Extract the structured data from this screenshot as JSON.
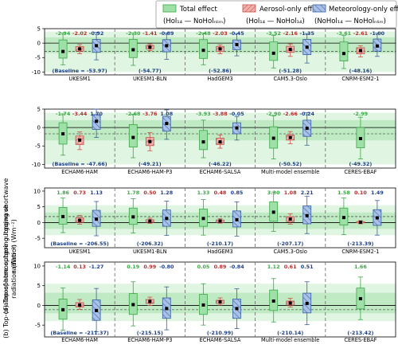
{
  "colors": {
    "total": "#3aa845",
    "total_fill": "#9fe0a8",
    "aerosol": "#c8504a",
    "aerosol_fill": "#f0b3ae",
    "meteo": "#3860a0",
    "meteo_fill": "#a9c1e6",
    "band_dark": "#bfeac4",
    "band_light": "#e0f5e2"
  },
  "legend": [
    {
      "line1": "Total effect",
      "line2": "(Hol₁₄ — NoHolₙₗᵢₘ)",
      "key": "total"
    },
    {
      "line1": "Aerosol-only effect",
      "line2": "(Hol₁₄ — NoHol₁₄)",
      "key": "aerosol"
    },
    {
      "line1": "Meteorology-only effect",
      "line2": "(NoHol₁₄ — NoHolₙₗᵢₘ)",
      "key": "meteo"
    }
  ],
  "y_labels": {
    "a": "(a) Top-of-atmosphere outgoing shortwave",
    "a2": "radiation (Wm⁻²)",
    "b": "(b) Top-of-atmosphere outgoing longwave",
    "b2": "radiation (Wm⁻²)"
  },
  "chart_data": [
    {
      "type": "box",
      "panel": "SW-top",
      "ylim": [
        -11,
        5
      ],
      "yticks": [
        5,
        0,
        -5,
        -10
      ],
      "band_dark": [
        -3.5,
        2.0
      ],
      "band_light": [
        -10,
        4
      ],
      "models": [
        {
          "name": "UKESM1",
          "baseline": "(Baseline = -53.97)",
          "values": [
            "-2.94",
            "-2.02",
            "-0.92"
          ],
          "boxes": [
            {
              "med": -2.9,
              "q1": -5.2,
              "q3": 1.1,
              "lo": -7.5,
              "hi": 3.5
            },
            {
              "med": -2.0,
              "q1": -2.8,
              "q3": -1.2,
              "lo": -3.7,
              "hi": -0.5
            },
            {
              "med": -0.9,
              "q1": -3.2,
              "q3": 1.3,
              "lo": -5.8,
              "hi": 3.7
            }
          ]
        },
        {
          "name": "UKESM1-BLN",
          "baseline": "(-54.77)",
          "values": [
            "-2.30",
            "-1.41",
            "-0.89"
          ],
          "boxes": [
            {
              "med": -2.3,
              "q1": -5.0,
              "q3": 1.3,
              "lo": -7.7,
              "hi": 3.5
            },
            {
              "med": -1.4,
              "q1": -2.0,
              "q3": -0.8,
              "lo": -2.6,
              "hi": -0.3
            },
            {
              "med": -0.9,
              "q1": -3.0,
              "q3": 1.2,
              "lo": -5.6,
              "hi": 3.5
            }
          ]
        },
        {
          "name": "HadGEM3",
          "baseline": "(-52.86)",
          "values": [
            "-2.48",
            "-2.03",
            "-0.45"
          ],
          "boxes": [
            {
              "med": -2.5,
              "q1": -5.3,
              "q3": 1.2,
              "lo": -7.5,
              "hi": 3.5
            },
            {
              "med": -2.0,
              "q1": -2.9,
              "q3": -1.2,
              "lo": -3.7,
              "hi": -0.6
            },
            {
              "med": -0.5,
              "q1": -2.3,
              "q3": 1.1,
              "lo": -4.4,
              "hi": 3.3
            }
          ]
        },
        {
          "name": "CAM5.3-Oslo",
          "baseline": "(-51.28)",
          "values": [
            "-3.52",
            "-2.16",
            "-1.35"
          ],
          "boxes": [
            {
              "med": -3.5,
              "q1": -6.0,
              "q3": 0.4,
              "lo": -8.6,
              "hi": 2.7
            },
            {
              "med": -2.2,
              "q1": -3.2,
              "q3": -1.1,
              "lo": -4.6,
              "hi": -0.3
            },
            {
              "med": -1.4,
              "q1": -4.0,
              "q3": 1.3,
              "lo": -6.9,
              "hi": 3.3
            }
          ]
        },
        {
          "name": "CNRM-ESM2-1",
          "baseline": "(-48.16)",
          "values": [
            "-3.61",
            "-2.61",
            "-1.00"
          ],
          "boxes": [
            {
              "med": -3.6,
              "q1": -6.2,
              "q3": 0.4,
              "lo": -8.8,
              "hi": 2.6
            },
            {
              "med": -2.6,
              "q1": -3.7,
              "q3": -1.6,
              "lo": -4.8,
              "hi": -0.9
            },
            {
              "med": -1.0,
              "q1": -2.8,
              "q3": 1.4,
              "lo": -4.6,
              "hi": 3.4
            }
          ]
        }
      ]
    },
    {
      "type": "box",
      "panel": "SW-bottom",
      "ylim": [
        -11,
        5
      ],
      "yticks": [
        5,
        0,
        -5,
        -10
      ],
      "band_dark": [
        -3.5,
        2.0
      ],
      "band_light": [
        -10,
        4
      ],
      "models": [
        {
          "name": "ECHAM6-HAM",
          "baseline": "(Baseline = -47.66)",
          "values": [
            "-1.74",
            "-3.44",
            "1.70"
          ],
          "boxes": [
            {
              "med": -1.7,
              "q1": -4.5,
              "q3": 1.3,
              "lo": -7.5,
              "hi": 3.7
            },
            {
              "med": -3.4,
              "q1": -4.6,
              "q3": -2.3,
              "lo": -6.0,
              "hi": -1.2
            },
            {
              "med": 1.7,
              "q1": -0.5,
              "q3": 3.5,
              "lo": -2.7,
              "hi": 5.0
            }
          ]
        },
        {
          "name": "ECHAM6-HAM-P3",
          "baseline": "(-49.21)",
          "values": [
            "-2.68",
            "-3.76",
            "1.08"
          ],
          "boxes": [
            {
              "med": -2.7,
              "q1": -5.3,
              "q3": 0.8,
              "lo": -8.2,
              "hi": 3.6
            },
            {
              "med": -3.8,
              "q1": -4.9,
              "q3": -2.7,
              "lo": -6.3,
              "hi": -1.4
            },
            {
              "med": 1.1,
              "q1": -1.0,
              "q3": 3.0,
              "lo": -3.2,
              "hi": 4.8
            }
          ]
        },
        {
          "name": "ECHAM6-SALSA",
          "baseline": "(-46.22)",
          "values": [
            "-3.93",
            "-3.88",
            "-0.05"
          ],
          "boxes": [
            {
              "med": -3.9,
              "q1": -6.0,
              "q3": -0.8,
              "lo": -8.2,
              "hi": 2.0
            },
            {
              "med": -3.9,
              "q1": -4.6,
              "q3": -2.9,
              "lo": -5.6,
              "hi": -2.0
            },
            {
              "med": -0.1,
              "q1": -1.7,
              "q3": 1.3,
              "lo": -3.4,
              "hi": 3.0
            }
          ]
        },
        {
          "name": "Multi-model ensemble",
          "baseline": "(-50.52)",
          "values": [
            "-2.90",
            "-2.66",
            "-0.24"
          ],
          "boxes": [
            {
              "med": -2.9,
              "q1": -5.6,
              "q3": 0.2,
              "lo": -8.5,
              "hi": 3.2
            },
            {
              "med": -2.7,
              "q1": -3.4,
              "q3": -2.0,
              "lo": -4.4,
              "hi": -1.1
            },
            {
              "med": -0.2,
              "q1": -2.4,
              "q3": 2.0,
              "lo": -4.8,
              "hi": 4.0
            }
          ]
        },
        {
          "name": "CERES-EBAF",
          "baseline": "(-49.32)",
          "values": [
            "-2.99"
          ],
          "boxes": [
            {
              "med": -3.0,
              "q1": -5.5,
              "q3": 0.0,
              "lo": -8.5,
              "hi": 2.8
            }
          ]
        }
      ]
    },
    {
      "type": "box",
      "panel": "LW-top",
      "ylim": [
        -8,
        11
      ],
      "yticks": [
        10,
        5,
        0,
        -5
      ],
      "band_dark": [
        -2.0,
        3.2
      ],
      "band_light": [
        -4.0,
        5.5
      ],
      "models": [
        {
          "name": "UKESM1",
          "baseline": "(Baseline = -206.55)",
          "values": [
            "1.86",
            "0.73",
            "1.13"
          ],
          "boxes": [
            {
              "med": 1.9,
              "q1": -0.5,
              "q3": 4.8,
              "lo": -3.2,
              "hi": 7.8
            },
            {
              "med": 0.7,
              "q1": 0.1,
              "q3": 1.5,
              "lo": -0.5,
              "hi": 2.3
            },
            {
              "med": 1.1,
              "q1": -1.2,
              "q3": 3.9,
              "lo": -4.2,
              "hi": 6.7
            }
          ]
        },
        {
          "name": "UKESM1-BLN",
          "baseline": "(-206.32)",
          "values": [
            "1.78",
            "0.50",
            "1.28"
          ],
          "boxes": [
            {
              "med": 1.8,
              "q1": -0.6,
              "q3": 4.6,
              "lo": -3.3,
              "hi": 7.6
            },
            {
              "med": 0.5,
              "q1": 0.1,
              "q3": 0.9,
              "lo": -0.3,
              "hi": 1.4
            },
            {
              "med": 1.3,
              "q1": -1.2,
              "q3": 4.0,
              "lo": -4.1,
              "hi": 6.8
            }
          ]
        },
        {
          "name": "HadGEM3",
          "baseline": "(-210.17)",
          "values": [
            "1.33",
            "0.48",
            "0.85"
          ],
          "boxes": [
            {
              "med": 1.3,
              "q1": -1.2,
              "q3": 4.3,
              "lo": -4.0,
              "hi": 7.3
            },
            {
              "med": 0.5,
              "q1": 0.1,
              "q3": 0.8,
              "lo": -0.2,
              "hi": 1.2
            },
            {
              "med": 0.9,
              "q1": -1.4,
              "q3": 3.7,
              "lo": -4.3,
              "hi": 6.6
            }
          ]
        },
        {
          "name": "CAM5.3-Oslo",
          "baseline": "(-207.17)",
          "values": [
            "3.30",
            "1.08",
            "2.21"
          ],
          "boxes": [
            {
              "med": 3.3,
              "q1": 0.4,
              "q3": 6.6,
              "lo": -2.8,
              "hi": 9.7
            },
            {
              "med": 1.1,
              "q1": 0.3,
              "q3": 1.9,
              "lo": -0.5,
              "hi": 2.8
            },
            {
              "med": 2.2,
              "q1": -0.4,
              "q3": 5.3,
              "lo": -3.5,
              "hi": 8.4
            }
          ]
        },
        {
          "name": "CNRM-ESM2-1",
          "baseline": "(-213.39)",
          "values": [
            "1.58",
            "0.10",
            "1.49"
          ],
          "boxes": [
            {
              "med": 1.6,
              "q1": -0.8,
              "q3": 4.6,
              "lo": -3.8,
              "hi": 7.8
            },
            {
              "med": 0.1,
              "q1": -0.1,
              "q3": 0.3,
              "lo": -0.4,
              "hi": 0.6
            },
            {
              "med": 1.5,
              "q1": -0.9,
              "q3": 4.1,
              "lo": -4.0,
              "hi": 7.0
            }
          ]
        }
      ]
    },
    {
      "type": "box",
      "panel": "LW-bottom",
      "ylim": [
        -8,
        11
      ],
      "yticks": [
        10,
        5,
        0,
        -5
      ],
      "band_dark": [
        -2.0,
        3.2
      ],
      "band_light": [
        -4.0,
        5.5
      ],
      "models": [
        {
          "name": "ECHAM6-HAM",
          "baseline": "(Baseline = -211.37)",
          "values": [
            "-1.14",
            "0.13",
            "-1.27"
          ],
          "boxes": [
            {
              "med": -1.1,
              "q1": -3.5,
              "q3": 1.6,
              "lo": -6.3,
              "hi": 4.4
            },
            {
              "med": 0.1,
              "q1": -0.4,
              "q3": 0.7,
              "lo": -1.0,
              "hi": 1.5
            },
            {
              "med": -1.3,
              "q1": -3.8,
              "q3": 1.4,
              "lo": -6.7,
              "hi": 4.3
            }
          ]
        },
        {
          "name": "ECHAM6-HAM-P3",
          "baseline": "(-215.15)",
          "values": [
            "0.19",
            "0.99",
            "-0.80"
          ],
          "boxes": [
            {
              "med": 0.2,
              "q1": -2.3,
              "q3": 3.0,
              "lo": -5.2,
              "hi": 6.0
            },
            {
              "med": 1.0,
              "q1": 0.5,
              "q3": 1.5,
              "lo": 0.0,
              "hi": 2.1
            },
            {
              "med": -0.8,
              "q1": -3.3,
              "q3": 1.9,
              "lo": -6.2,
              "hi": 4.7
            }
          ]
        },
        {
          "name": "ECHAM6-SALSA",
          "baseline": "(-210.99)",
          "values": [
            "0.05",
            "0.89",
            "-0.84"
          ],
          "boxes": [
            {
              "med": 0.1,
              "q1": -2.3,
              "q3": 2.8,
              "lo": -5.0,
              "hi": 5.5
            },
            {
              "med": 0.9,
              "q1": 0.5,
              "q3": 1.3,
              "lo": 0.1,
              "hi": 1.9
            },
            {
              "med": -0.8,
              "q1": -3.3,
              "q3": 1.6,
              "lo": -5.9,
              "hi": 4.2
            }
          ]
        },
        {
          "name": "Multi-model ensemble",
          "baseline": "(-210.14)",
          "values": [
            "1.12",
            "0.61",
            "0.51"
          ],
          "boxes": [
            {
              "med": 1.1,
              "q1": -1.3,
              "q3": 3.9,
              "lo": -4.2,
              "hi": 6.8
            },
            {
              "med": 0.6,
              "q1": 0.1,
              "q3": 1.1,
              "lo": -0.4,
              "hi": 1.8
            },
            {
              "med": 0.5,
              "q1": -1.9,
              "q3": 3.1,
              "lo": -4.9,
              "hi": 6.0
            }
          ]
        },
        {
          "name": "CERES-EBAF",
          "baseline": "(-213.42)",
          "values": [
            "1.66"
          ],
          "boxes": [
            {
              "med": 1.7,
              "q1": -0.9,
              "q3": 4.4,
              "lo": -3.6,
              "hi": 7.2
            }
          ]
        }
      ]
    }
  ]
}
